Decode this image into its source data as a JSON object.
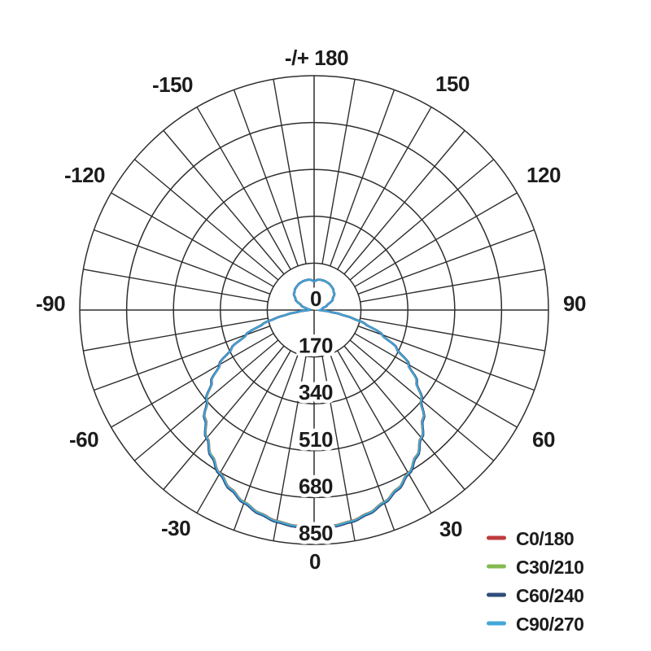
{
  "figure": {
    "background": "#ffffff",
    "text_color": "#1c1c1c",
    "grid_color": "#2e2e2e"
  },
  "chart_data": {
    "type": "line",
    "subtype": "polar-photometric-intensity-diagram",
    "title": "",
    "radial_unit_max": 850,
    "radial_ticks": [
      0,
      170,
      340,
      510,
      680,
      850
    ],
    "ring_step": 170,
    "spoke_step_deg": 10,
    "grid": "on",
    "legend_position": "bottom-right",
    "angle_labels": [
      {
        "text": "-/+ 180",
        "deg": 180
      },
      {
        "text": "150",
        "deg": 150
      },
      {
        "text": "120",
        "deg": 120
      },
      {
        "text": "90",
        "deg": 90
      },
      {
        "text": "60",
        "deg": 60
      },
      {
        "text": "30",
        "deg": 30
      },
      {
        "text": "0",
        "deg": 0
      },
      {
        "text": "-30",
        "deg": -30
      },
      {
        "text": "-60",
        "deg": -60
      },
      {
        "text": "-90",
        "deg": -90
      },
      {
        "text": "-120",
        "deg": -120
      },
      {
        "text": "-150",
        "deg": -150
      }
    ],
    "angles_deg": [
      0,
      5,
      10,
      15,
      20,
      25,
      30,
      35,
      40,
      45,
      50,
      55,
      60,
      65,
      70,
      75,
      78,
      81,
      84,
      87,
      90,
      95,
      100,
      110,
      120,
      130,
      140,
      145,
      150,
      155,
      160,
      165,
      170,
      174,
      177,
      180
    ],
    "symmetric_mirror": true,
    "series": [
      {
        "name": "C0/180",
        "color": "#bf3b3d",
        "stroke_width": 2.2,
        "values": [
          788,
          784,
          776,
          761,
          740,
          714,
          682,
          645,
          603,
          557,
          506,
          452,
          394,
          329,
          261,
          189,
          140,
          95,
          55,
          30,
          18,
          15,
          25,
          50,
          78,
          95,
          104,
          107,
          110,
          111,
          112,
          112,
          112,
          110,
          107,
          103
        ]
      },
      {
        "name": "C30/210",
        "color": "#85ba52",
        "stroke_width": 2.2,
        "values": [
          789,
          785,
          777,
          762,
          741,
          715,
          683,
          646,
          604,
          558,
          507,
          453,
          395,
          330,
          262,
          190,
          140,
          95,
          55,
          30,
          18,
          15,
          25,
          50,
          78,
          95,
          104,
          107,
          110,
          111,
          112,
          112,
          112,
          110,
          107,
          103
        ]
      },
      {
        "name": "C60/240",
        "color": "#2e4d7b",
        "stroke_width": 2.8,
        "values": [
          793,
          789,
          781,
          766,
          745,
          719,
          687,
          650,
          607,
          561,
          510,
          455,
          397,
          331,
          263,
          191,
          141,
          95,
          55,
          30,
          18,
          15,
          25,
          50,
          78,
          95,
          104,
          107,
          110,
          111,
          112,
          112,
          112,
          110,
          107,
          103
        ]
      },
      {
        "name": "C90/270",
        "color": "#42a7da",
        "stroke_width": 2.0,
        "values": [
          790,
          786,
          778,
          763,
          742,
          716,
          684,
          647,
          605,
          559,
          508,
          453,
          395,
          330,
          262,
          190,
          140,
          95,
          55,
          30,
          18,
          15,
          25,
          50,
          78,
          95,
          104,
          107,
          110,
          111,
          112,
          112,
          112,
          110,
          107,
          103
        ]
      }
    ]
  }
}
